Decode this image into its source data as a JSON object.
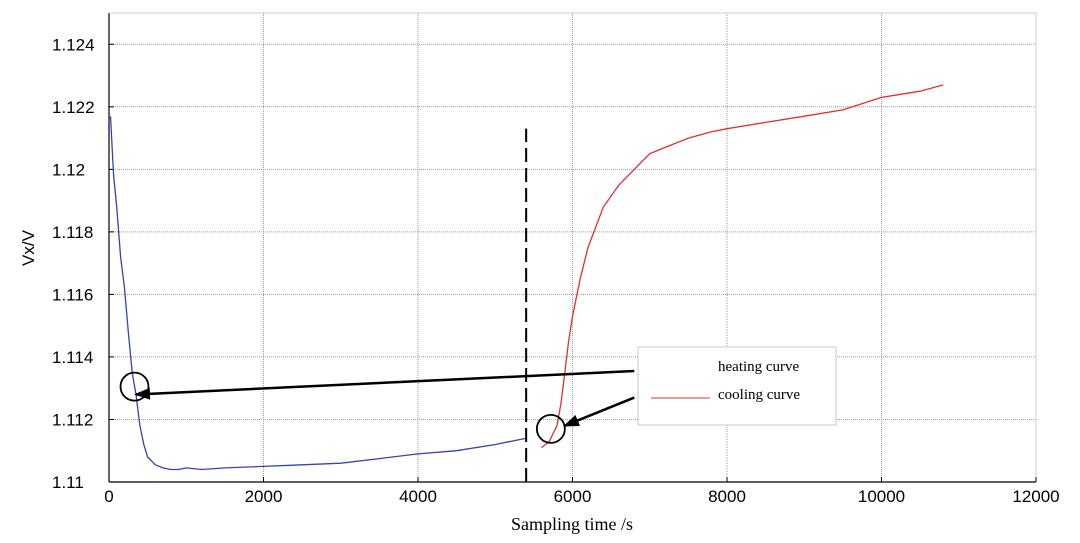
{
  "chart_data": {
    "type": "line",
    "title": "",
    "xlabel": "Sampling time /s",
    "ylabel": "Vx/V",
    "xlim": [
      0,
      12000
    ],
    "ylim": [
      1.11,
      1.125
    ],
    "x_ticks": [
      0,
      2000,
      4000,
      6000,
      8000,
      10000,
      12000
    ],
    "x_tick_labels": [
      "0",
      "2000",
      "4000",
      "6000",
      "8000",
      "10000",
      "12000"
    ],
    "y_ticks": [
      1.11,
      1.112,
      1.114,
      1.116,
      1.118,
      1.12,
      1.122,
      1.124
    ],
    "y_tick_labels": [
      "1.11",
      "1.112",
      "1.114",
      "1.116",
      "1.118",
      "1.12",
      "1.122",
      "1.124"
    ],
    "grid": true,
    "legend_position": "right",
    "legend": [
      "heating curve",
      "cooling curve"
    ],
    "series": [
      {
        "name": "heating curve",
        "color": "#3344aa",
        "x": [
          20,
          60,
          100,
          150,
          200,
          250,
          300,
          350,
          400,
          450,
          500,
          600,
          700,
          800,
          900,
          1000,
          1200,
          1500,
          2000,
          2500,
          3000,
          3500,
          4000,
          4500,
          5000,
          5400
        ],
        "y": [
          1.1217,
          1.1198,
          1.1188,
          1.1172,
          1.1162,
          1.1148,
          1.1135,
          1.1128,
          1.1118,
          1.1112,
          1.1108,
          1.11055,
          1.11045,
          1.1104,
          1.1104,
          1.11045,
          1.1104,
          1.11045,
          1.1105,
          1.11055,
          1.1106,
          1.11075,
          1.1109,
          1.111,
          1.1112,
          1.1114
        ]
      },
      {
        "name": "cooling curve",
        "color": "#e03030",
        "x": [
          5600,
          5700,
          5800,
          5850,
          5900,
          5950,
          6000,
          6100,
          6200,
          6400,
          6600,
          6800,
          7000,
          7200,
          7500,
          7800,
          8000,
          8500,
          9000,
          9500,
          10000,
          10500,
          10800
        ],
        "y": [
          1.1111,
          1.1113,
          1.1118,
          1.1125,
          1.1135,
          1.1145,
          1.1153,
          1.1165,
          1.1175,
          1.1188,
          1.1195,
          1.12,
          1.1205,
          1.1207,
          1.121,
          1.1212,
          1.1213,
          1.1215,
          1.1217,
          1.1219,
          1.1223,
          1.1225,
          1.1227
        ]
      }
    ],
    "annotations": [
      {
        "type": "vline_dashed",
        "x": 5400,
        "y_from": 1.11,
        "y_to": 1.1213
      },
      {
        "type": "circle",
        "x": 330,
        "y": 1.11305
      },
      {
        "type": "circle",
        "x": 5720,
        "y": 1.1117
      },
      {
        "type": "arrow",
        "from": [
          6800,
          1.11355
        ],
        "to": [
          350,
          1.1128
        ]
      },
      {
        "type": "arrow",
        "from": [
          6800,
          1.1127
        ],
        "to": [
          5900,
          1.1118
        ]
      }
    ]
  }
}
